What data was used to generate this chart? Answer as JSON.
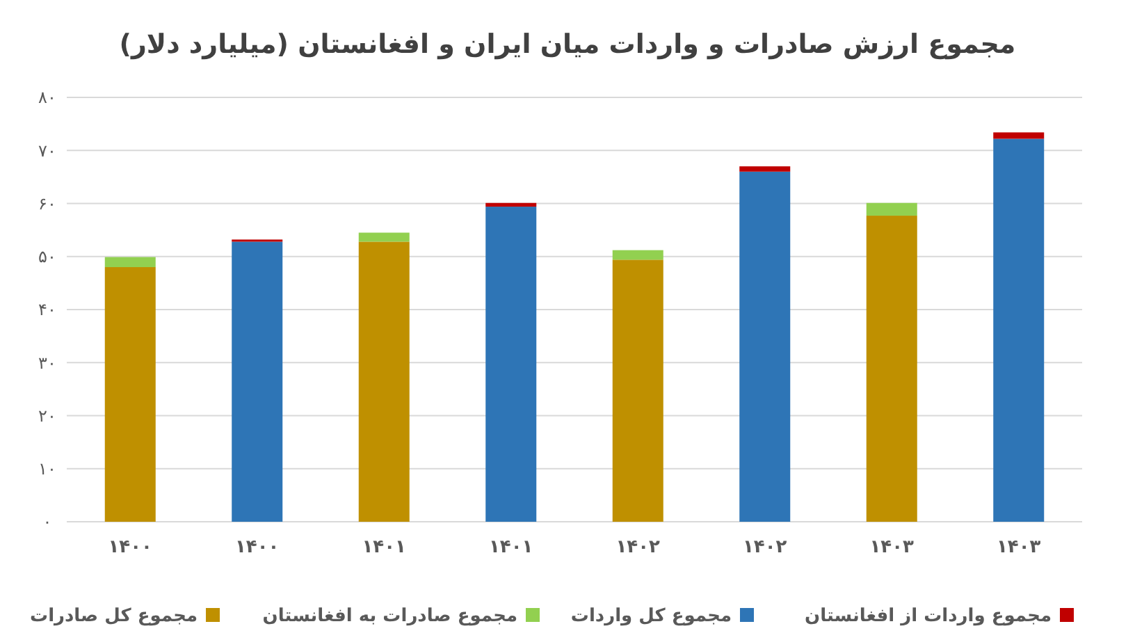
{
  "chart_data": {
    "type": "bar",
    "title": "مجموع ارزش صادرات و واردات میان ایران و افغانستان (میلیارد دلار)",
    "categories": [
      "۱۴۰۰",
      "۱۴۰۰",
      "۱۴۰۱",
      "۱۴۰۱",
      "۱۴۰۲",
      "۱۴۰۲",
      "۱۴۰۳",
      "۱۴۰۳"
    ],
    "series": [
      {
        "name": "مجموع کل صادرات",
        "color": "#bf9000",
        "values": [
          48.0,
          null,
          52.8,
          null,
          49.4,
          null,
          57.7,
          null
        ]
      },
      {
        "name": "مجموع صادرات به افغانستان",
        "color": "#92d050",
        "values": [
          1.9,
          null,
          1.7,
          null,
          1.8,
          null,
          2.4,
          null
        ]
      },
      {
        "name": "مجموع کل واردات",
        "color": "#2e75b6",
        "values": [
          null,
          52.8,
          null,
          59.4,
          null,
          66.0,
          null,
          72.2
        ]
      },
      {
        "name": "مجموع واردات از افغانستان",
        "color": "#c00000",
        "values": [
          null,
          0.4,
          null,
          0.7,
          null,
          1.0,
          null,
          1.2
        ]
      }
    ],
    "stacked": true,
    "ylim": [
      0,
      80
    ],
    "yticks": [
      {
        "value": 0,
        "label": "۰"
      },
      {
        "value": 10,
        "label": "۱۰"
      },
      {
        "value": 20,
        "label": "۲۰"
      },
      {
        "value": 30,
        "label": "۳۰"
      },
      {
        "value": 40,
        "label": "۴۰"
      },
      {
        "value": 50,
        "label": "۵۰"
      },
      {
        "value": 60,
        "label": "۶۰"
      },
      {
        "value": 70,
        "label": "۷۰"
      },
      {
        "value": 80,
        "label": "۸۰"
      }
    ],
    "grid": "y",
    "legend": "bottom"
  }
}
